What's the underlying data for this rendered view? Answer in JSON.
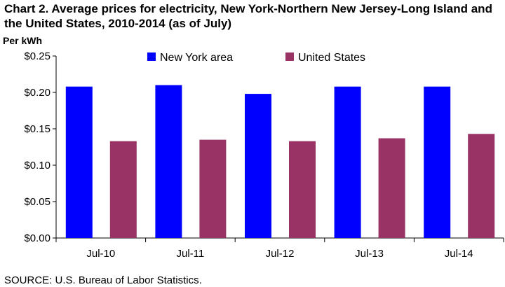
{
  "chart_data": {
    "type": "bar",
    "title": "Chart 2. Average prices for electricity, New York-Northern New Jersey-Long Island and the United States, 2010-2014 (as of July)",
    "ylabel": "Per kWh",
    "source": "SOURCE: U.S. Bureau of Labor Statistics.",
    "categories": [
      "Jul-10",
      "Jul-11",
      "Jul-12",
      "Jul-13",
      "Jul-14"
    ],
    "series": [
      {
        "name": "New York area",
        "color": "#0000ff",
        "values": [
          0.208,
          0.21,
          0.198,
          0.208,
          0.208
        ]
      },
      {
        "name": "United States",
        "color": "#993366",
        "values": [
          0.133,
          0.135,
          0.133,
          0.137,
          0.143
        ]
      }
    ],
    "ylim": [
      0,
      0.25
    ],
    "yticks": [
      "$0.00",
      "$0.05",
      "$0.10",
      "$0.15",
      "$0.20",
      "$0.25"
    ],
    "grid": false,
    "legend": "top"
  }
}
